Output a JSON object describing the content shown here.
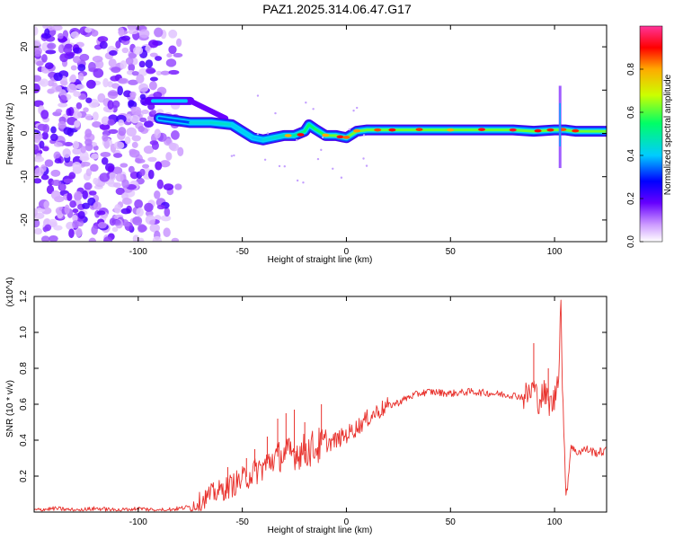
{
  "title": "PAZ1.2025.314.06.47.G17",
  "chart_data": [
    {
      "type": "heatmap",
      "title": "PAZ1.2025.314.06.47.G17",
      "xlabel": "Height of straight line (km)",
      "ylabel": "Frequency (Hz)",
      "xlim": [
        -150,
        125
      ],
      "ylim": [
        -25,
        25
      ],
      "xticks": [
        -100,
        -50,
        0,
        50,
        100
      ],
      "yticks": [
        -20,
        -10,
        0,
        10,
        20
      ],
      "colorbar": {
        "label": "Normalized spectral amplitude",
        "range": [
          0,
          1
        ],
        "ticks": [
          "0.0",
          "0.2",
          "0.4",
          "0.6",
          "0.8"
        ],
        "colors": [
          "#ffffff",
          "#cc99ff",
          "#6600ff",
          "#0000ff",
          "#00ccff",
          "#00ff66",
          "#ccff00",
          "#ffaa00",
          "#ff0000",
          "#ff3399"
        ]
      },
      "ridge": {
        "upper_branch": {
          "x": [
            -95,
            -75
          ],
          "freq": [
            7.5,
            7.5
          ],
          "amplitude": 0.45
        },
        "main_trace": {
          "x": [
            -90,
            -75,
            -65,
            -55,
            -45,
            -40,
            -35,
            -30,
            -25,
            -20,
            -18,
            -15,
            -10,
            -5,
            0,
            5,
            10,
            20,
            40,
            60,
            80,
            90,
            100,
            105,
            110,
            125
          ],
          "freq": [
            3.5,
            2.5,
            2.5,
            2.0,
            -1.0,
            -1.5,
            -1.0,
            -0.5,
            -0.5,
            0.5,
            2.0,
            1.0,
            -0.5,
            -0.5,
            -1.0,
            0.5,
            0.8,
            0.8,
            0.8,
            0.8,
            0.8,
            0.5,
            0.8,
            0.8,
            0.5,
            0.5
          ],
          "amplitude": [
            0.3,
            0.55,
            0.6,
            0.6,
            0.5,
            0.55,
            0.6,
            0.6,
            0.65,
            0.7,
            0.75,
            0.7,
            0.8,
            0.85,
            0.95,
            0.9,
            0.85,
            0.9,
            0.85,
            0.85,
            0.9,
            0.9,
            0.95,
            0.9,
            0.9,
            0.8
          ]
        },
        "noise_region_x": [
          -150,
          -78
        ]
      }
    },
    {
      "type": "line",
      "xlabel": "Height of straight line (km)",
      "ylabel": "SNR (10 * v/v)",
      "scale_label": "(x10^4)",
      "xlim": [
        -150,
        125
      ],
      "ylim": [
        0,
        1.2
      ],
      "xticks": [
        -100,
        -50,
        0,
        50,
        100
      ],
      "yticks": [
        "0.2",
        "0.4",
        "0.6",
        "0.8",
        "1.0",
        "1.2"
      ],
      "series": [
        {
          "name": "SNR",
          "color": "#e8312c",
          "x": [
            -150,
            -140,
            -130,
            -120,
            -110,
            -100,
            -90,
            -80,
            -75,
            -70,
            -65,
            -60,
            -55,
            -50,
            -45,
            -40,
            -35,
            -30,
            -25,
            -20,
            -15,
            -10,
            -5,
            0,
            5,
            10,
            15,
            20,
            25,
            30,
            35,
            40,
            50,
            60,
            70,
            80,
            85,
            88,
            90,
            92,
            95,
            98,
            100,
            102,
            103,
            104,
            105,
            106,
            108,
            110,
            115,
            120,
            125
          ],
          "values": [
            0.01,
            0.02,
            0.01,
            0.02,
            0.01,
            0.02,
            0.01,
            0.02,
            0.03,
            0.06,
            0.1,
            0.12,
            0.15,
            0.18,
            0.22,
            0.25,
            0.3,
            0.32,
            0.33,
            0.34,
            0.36,
            0.38,
            0.4,
            0.43,
            0.47,
            0.52,
            0.56,
            0.59,
            0.61,
            0.64,
            0.66,
            0.67,
            0.66,
            0.67,
            0.66,
            0.65,
            0.64,
            0.66,
            0.7,
            0.62,
            0.66,
            0.6,
            0.62,
            0.8,
            1.18,
            0.6,
            0.2,
            0.12,
            0.38,
            0.33,
            0.35,
            0.33,
            0.34
          ],
          "spikes": [
            {
              "x": -57,
              "y": 0.25
            },
            {
              "x": -48,
              "y": 0.3
            },
            {
              "x": -44,
              "y": 0.35
            },
            {
              "x": -38,
              "y": 0.42
            },
            {
              "x": -33,
              "y": 0.52
            },
            {
              "x": -29,
              "y": 0.55
            },
            {
              "x": -25,
              "y": 0.57
            },
            {
              "x": -20,
              "y": 0.5
            },
            {
              "x": -12,
              "y": 0.6
            },
            {
              "x": 90,
              "y": 0.94
            },
            {
              "x": 97,
              "y": 0.8
            },
            {
              "x": 103,
              "y": 1.18
            }
          ]
        }
      ]
    }
  ]
}
